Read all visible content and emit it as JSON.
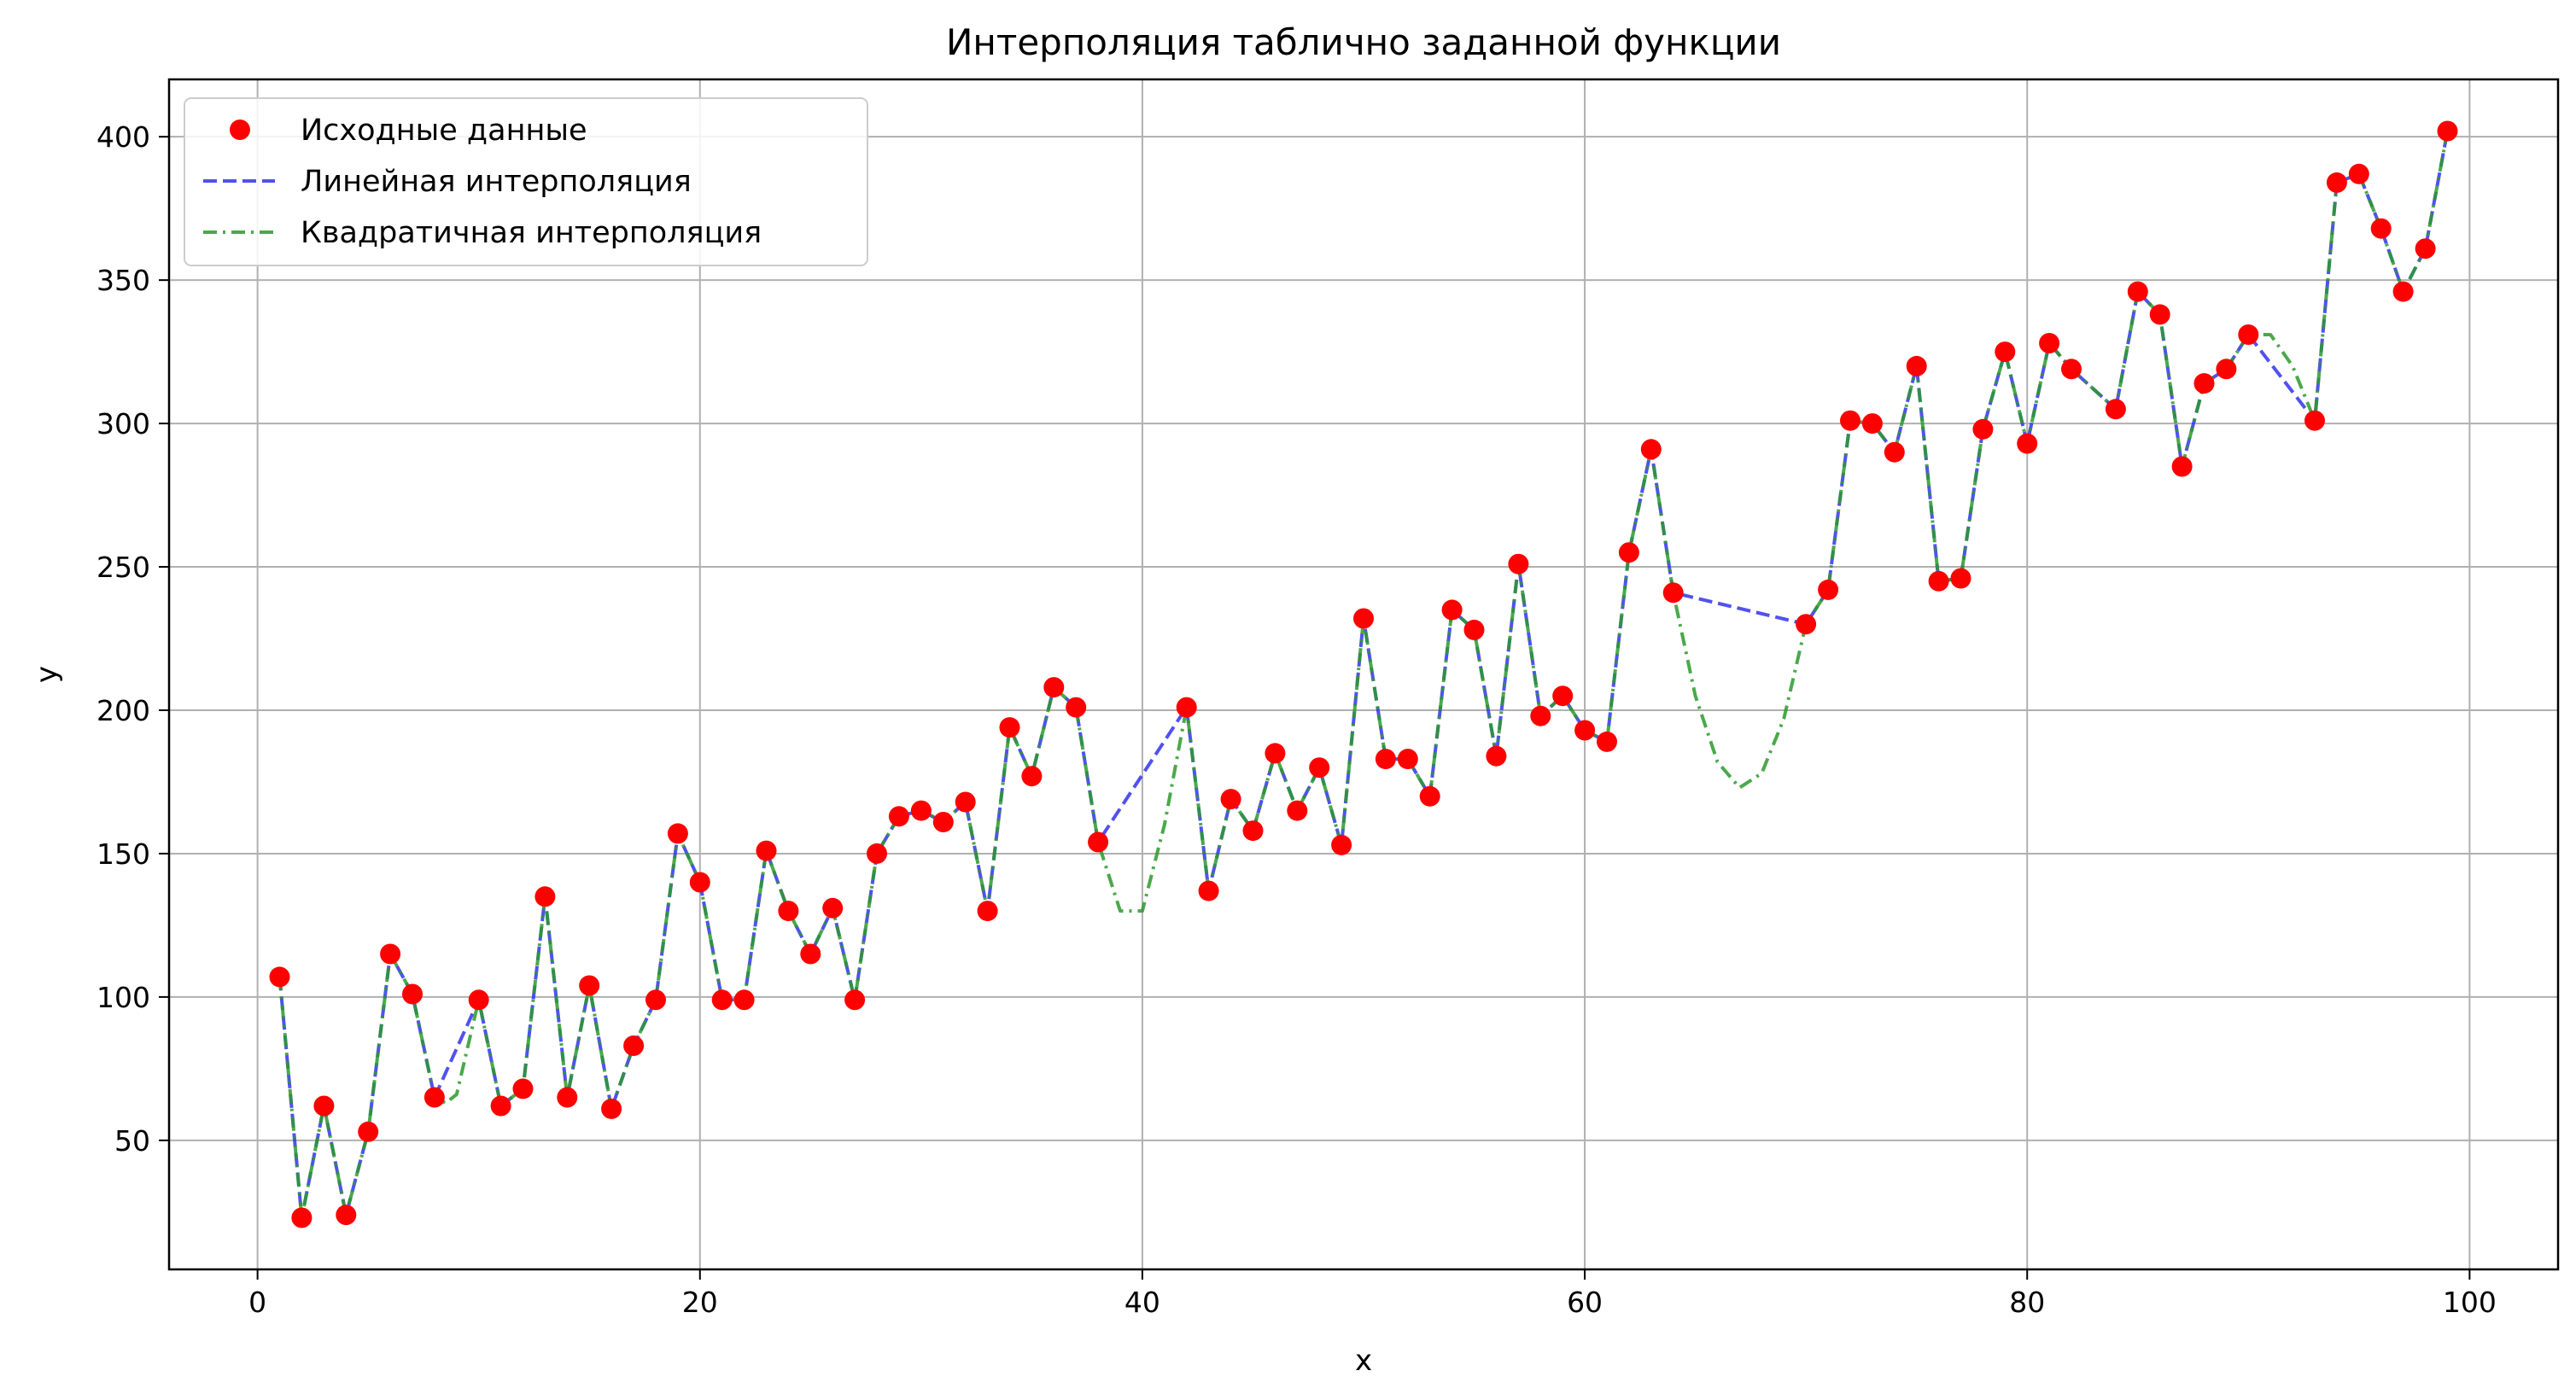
{
  "chart_data": {
    "type": "line",
    "title": "Интерполяция таблично заданной функции",
    "xlabel": "x",
    "ylabel": "y",
    "xlim": [
      -4,
      104
    ],
    "ylim": [
      5,
      420
    ],
    "xticks": [
      0,
      20,
      40,
      60,
      80,
      100
    ],
    "yticks": [
      50,
      100,
      150,
      200,
      250,
      300,
      350,
      400
    ],
    "grid": true,
    "legend_position": "top-left",
    "series": [
      {
        "name": "Исходные данные",
        "kind": "scatter",
        "color": "#ff0000",
        "points": [
          [
            1,
            107
          ],
          [
            2,
            23
          ],
          [
            3,
            62
          ],
          [
            4,
            24
          ],
          [
            5,
            53
          ],
          [
            6,
            115
          ],
          [
            7,
            101
          ],
          [
            8,
            65
          ],
          [
            10,
            99
          ],
          [
            11,
            62
          ],
          [
            12,
            68
          ],
          [
            13,
            135
          ],
          [
            14,
            65
          ],
          [
            15,
            104
          ],
          [
            16,
            61
          ],
          [
            17,
            83
          ],
          [
            18,
            99
          ],
          [
            19,
            157
          ],
          [
            20,
            140
          ],
          [
            21,
            99
          ],
          [
            22,
            99
          ],
          [
            23,
            151
          ],
          [
            24,
            130
          ],
          [
            25,
            115
          ],
          [
            26,
            131
          ],
          [
            27,
            99
          ],
          [
            28,
            150
          ],
          [
            29,
            163
          ],
          [
            30,
            165
          ],
          [
            31,
            161
          ],
          [
            32,
            168
          ],
          [
            33,
            130
          ],
          [
            34,
            194
          ],
          [
            35,
            177
          ],
          [
            36,
            208
          ],
          [
            37,
            201
          ],
          [
            38,
            154
          ],
          [
            42,
            201
          ],
          [
            43,
            137
          ],
          [
            44,
            169
          ],
          [
            45,
            158
          ],
          [
            46,
            185
          ],
          [
            47,
            165
          ],
          [
            48,
            180
          ],
          [
            49,
            153
          ],
          [
            50,
            232
          ],
          [
            51,
            183
          ],
          [
            52,
            183
          ],
          [
            53,
            170
          ],
          [
            54,
            235
          ],
          [
            55,
            228
          ],
          [
            56,
            184
          ],
          [
            57,
            251
          ],
          [
            58,
            198
          ],
          [
            59,
            205
          ],
          [
            60,
            193
          ],
          [
            61,
            189
          ],
          [
            62,
            255
          ],
          [
            63,
            291
          ],
          [
            64,
            241
          ],
          [
            70,
            230
          ],
          [
            71,
            242
          ],
          [
            72,
            301
          ],
          [
            73,
            300
          ],
          [
            74,
            290
          ],
          [
            75,
            320
          ],
          [
            76,
            245
          ],
          [
            77,
            246
          ],
          [
            78,
            298
          ],
          [
            79,
            325
          ],
          [
            80,
            293
          ],
          [
            81,
            328
          ],
          [
            82,
            319
          ],
          [
            84,
            305
          ],
          [
            85,
            346
          ],
          [
            86,
            338
          ],
          [
            87,
            285
          ],
          [
            88,
            314
          ],
          [
            89,
            319
          ],
          [
            90,
            331
          ],
          [
            93,
            301
          ],
          [
            94,
            384
          ],
          [
            95,
            387
          ],
          [
            96,
            368
          ],
          [
            97,
            346
          ],
          [
            98,
            361
          ],
          [
            99,
            402
          ]
        ]
      },
      {
        "name": "Линейная интерполяция",
        "kind": "line",
        "style": "dashed",
        "color": "#3333ee",
        "points": [
          [
            1,
            107
          ],
          [
            2,
            23
          ],
          [
            3,
            62
          ],
          [
            4,
            24
          ],
          [
            5,
            53
          ],
          [
            6,
            115
          ],
          [
            7,
            101
          ],
          [
            8,
            65
          ],
          [
            10,
            99
          ],
          [
            11,
            62
          ],
          [
            12,
            68
          ],
          [
            13,
            135
          ],
          [
            14,
            65
          ],
          [
            15,
            104
          ],
          [
            16,
            61
          ],
          [
            17,
            83
          ],
          [
            18,
            99
          ],
          [
            19,
            157
          ],
          [
            20,
            140
          ],
          [
            21,
            99
          ],
          [
            22,
            99
          ],
          [
            23,
            151
          ],
          [
            24,
            130
          ],
          [
            25,
            115
          ],
          [
            26,
            131
          ],
          [
            27,
            99
          ],
          [
            28,
            150
          ],
          [
            29,
            163
          ],
          [
            30,
            165
          ],
          [
            31,
            161
          ],
          [
            32,
            168
          ],
          [
            33,
            130
          ],
          [
            34,
            194
          ],
          [
            35,
            177
          ],
          [
            36,
            208
          ],
          [
            37,
            201
          ],
          [
            38,
            154
          ],
          [
            42,
            201
          ],
          [
            43,
            137
          ],
          [
            44,
            169
          ],
          [
            45,
            158
          ],
          [
            46,
            185
          ],
          [
            47,
            165
          ],
          [
            48,
            180
          ],
          [
            49,
            153
          ],
          [
            50,
            232
          ],
          [
            51,
            183
          ],
          [
            52,
            183
          ],
          [
            53,
            170
          ],
          [
            54,
            235
          ],
          [
            55,
            228
          ],
          [
            56,
            184
          ],
          [
            57,
            251
          ],
          [
            58,
            198
          ],
          [
            59,
            205
          ],
          [
            60,
            193
          ],
          [
            61,
            189
          ],
          [
            62,
            255
          ],
          [
            63,
            291
          ],
          [
            64,
            241
          ],
          [
            70,
            230
          ],
          [
            71,
            242
          ],
          [
            72,
            301
          ],
          [
            73,
            300
          ],
          [
            74,
            290
          ],
          [
            75,
            320
          ],
          [
            76,
            245
          ],
          [
            77,
            246
          ],
          [
            78,
            298
          ],
          [
            79,
            325
          ],
          [
            80,
            293
          ],
          [
            81,
            328
          ],
          [
            82,
            319
          ],
          [
            84,
            305
          ],
          [
            85,
            346
          ],
          [
            86,
            338
          ],
          [
            87,
            285
          ],
          [
            88,
            314
          ],
          [
            89,
            319
          ],
          [
            90,
            331
          ],
          [
            93,
            301
          ],
          [
            94,
            384
          ],
          [
            95,
            387
          ],
          [
            96,
            368
          ],
          [
            97,
            346
          ],
          [
            98,
            361
          ],
          [
            99,
            402
          ]
        ]
      },
      {
        "name": "Квадратичная интерполяция",
        "kind": "line",
        "style": "dashdot",
        "color": "#2a9a2a",
        "points": [
          [
            1,
            107
          ],
          [
            2,
            23
          ],
          [
            3,
            62
          ],
          [
            4,
            24
          ],
          [
            5,
            53
          ],
          [
            6,
            115
          ],
          [
            7,
            101
          ],
          [
            8,
            65
          ],
          [
            8.5,
            63
          ],
          [
            9,
            66
          ],
          [
            10,
            99
          ],
          [
            11,
            62
          ],
          [
            12,
            68
          ],
          [
            13,
            135
          ],
          [
            14,
            65
          ],
          [
            15,
            104
          ],
          [
            16,
            61
          ],
          [
            17,
            83
          ],
          [
            18,
            99
          ],
          [
            19,
            157
          ],
          [
            20,
            140
          ],
          [
            21,
            99
          ],
          [
            22,
            99
          ],
          [
            23,
            151
          ],
          [
            24,
            130
          ],
          [
            25,
            115
          ],
          [
            26,
            131
          ],
          [
            27,
            99
          ],
          [
            28,
            150
          ],
          [
            29,
            163
          ],
          [
            30,
            165
          ],
          [
            31,
            161
          ],
          [
            32,
            168
          ],
          [
            33,
            130
          ],
          [
            34,
            194
          ],
          [
            35,
            177
          ],
          [
            36,
            208
          ],
          [
            37,
            201
          ],
          [
            38,
            154
          ],
          [
            39,
            130
          ],
          [
            40,
            130
          ],
          [
            41,
            160
          ],
          [
            42,
            201
          ],
          [
            43,
            137
          ],
          [
            44,
            169
          ],
          [
            45,
            158
          ],
          [
            46,
            185
          ],
          [
            47,
            165
          ],
          [
            48,
            180
          ],
          [
            49,
            153
          ],
          [
            50,
            232
          ],
          [
            51,
            183
          ],
          [
            52,
            183
          ],
          [
            53,
            170
          ],
          [
            54,
            235
          ],
          [
            55,
            228
          ],
          [
            56,
            184
          ],
          [
            57,
            251
          ],
          [
            58,
            198
          ],
          [
            59,
            205
          ],
          [
            60,
            193
          ],
          [
            61,
            189
          ],
          [
            62,
            255
          ],
          [
            63,
            291
          ],
          [
            64,
            241
          ],
          [
            65,
            205
          ],
          [
            66,
            182
          ],
          [
            67,
            173
          ],
          [
            68,
            178
          ],
          [
            69,
            197
          ],
          [
            70,
            230
          ],
          [
            71,
            242
          ],
          [
            72,
            301
          ],
          [
            73,
            300
          ],
          [
            74,
            290
          ],
          [
            75,
            320
          ],
          [
            76,
            245
          ],
          [
            77,
            246
          ],
          [
            78,
            298
          ],
          [
            79,
            325
          ],
          [
            80,
            293
          ],
          [
            81,
            328
          ],
          [
            82,
            319
          ],
          [
            84,
            305
          ],
          [
            85,
            346
          ],
          [
            86,
            338
          ],
          [
            87,
            285
          ],
          [
            88,
            314
          ],
          [
            89,
            319
          ],
          [
            90,
            331
          ],
          [
            91,
            331
          ],
          [
            92,
            320
          ],
          [
            93,
            301
          ],
          [
            94,
            384
          ],
          [
            95,
            387
          ],
          [
            96,
            368
          ],
          [
            97,
            346
          ],
          [
            98,
            361
          ],
          [
            99,
            402
          ]
        ]
      }
    ]
  }
}
